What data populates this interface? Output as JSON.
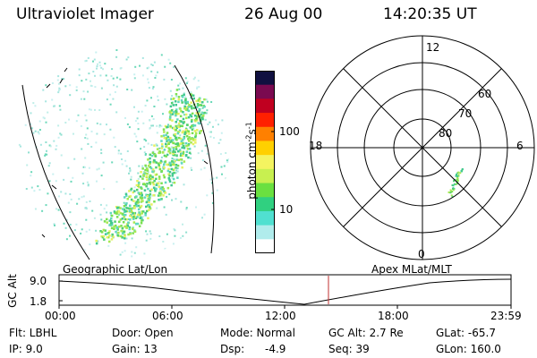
{
  "header": {
    "instrument": "Ultraviolet Imager",
    "date": "26 Aug 00",
    "time": "14:20:35 UT"
  },
  "colorbar": {
    "unit_label": "photon cm",
    "unit_exp1": "-2",
    "unit_mid": "s",
    "unit_exp2": "-1",
    "tick_100": "100",
    "tick_10": "10",
    "colors": [
      "#101040",
      "#7a0a50",
      "#c00020",
      "#ff2000",
      "#ff8000",
      "#ffd000",
      "#f4f460",
      "#c8f050",
      "#6ae040",
      "#30d080",
      "#50e0d0",
      "#b0ecec",
      "#ffffff"
    ]
  },
  "polar": {
    "lat_labels": [
      "60",
      "70",
      "80"
    ],
    "mlt_labels": {
      "top": "12",
      "left": "18",
      "right": "6",
      "bottom": "0"
    }
  },
  "panel_labels": {
    "left": "Geographic Lat/Lon",
    "right": "Apex MLat/MLT"
  },
  "timeline": {
    "ylabel": "GC Alt",
    "y_ticks": [
      "9.0",
      "1.8"
    ],
    "x_ticks": [
      "00:00",
      "06:00",
      "12:00",
      "18:00",
      "23:59"
    ],
    "marker_color": "#c03030"
  },
  "info": {
    "flt": "Flt: LBHL",
    "door": "Door: Open",
    "mode": "Mode: Normal",
    "gcalt": "GC Alt: 2.7 Re",
    "glat": "GLat: -65.7",
    "ip": "IP: 9.0",
    "gain": "Gain: 13",
    "dsp_label": "Dsp:",
    "dsp_value": "-4.9",
    "seq": "Seq: 39",
    "glon": "GLon: 160.0"
  }
}
